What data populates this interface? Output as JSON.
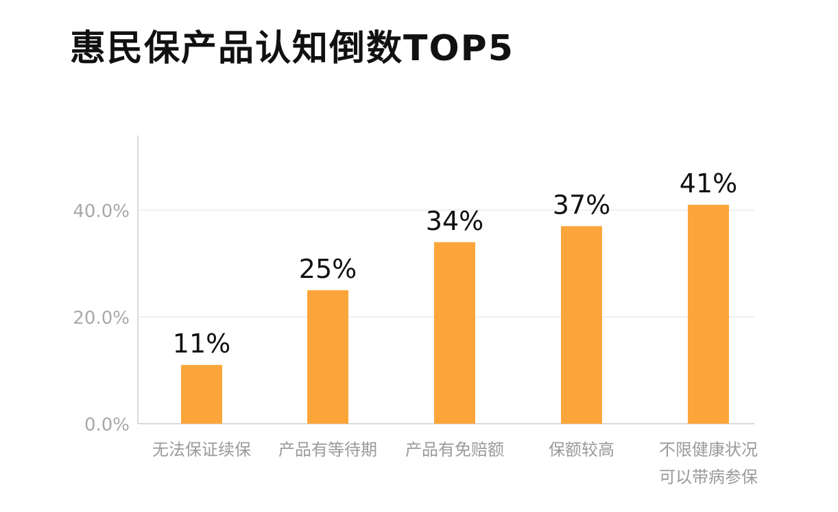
{
  "chart_data": {
    "type": "bar",
    "title": "惠民保产品认知倒数TOP5",
    "categories": [
      [
        "无法保证续保"
      ],
      [
        "产品有等待期"
      ],
      [
        "产品有免赔额"
      ],
      [
        "保额较高"
      ],
      [
        "不限健康状况",
        "可以带病参保"
      ]
    ],
    "values": [
      11,
      25,
      34,
      37,
      41
    ],
    "value_labels": [
      "11%",
      "25%",
      "34%",
      "37%",
      "41%"
    ],
    "ylim": [
      0,
      54
    ],
    "yticks": [
      0,
      20,
      40
    ],
    "ytick_labels": [
      "0.0%",
      "20.0%",
      "40.0%"
    ],
    "grid": true,
    "legend": "none",
    "bar_color": "#FBA53A",
    "xlabel": "",
    "ylabel": ""
  }
}
